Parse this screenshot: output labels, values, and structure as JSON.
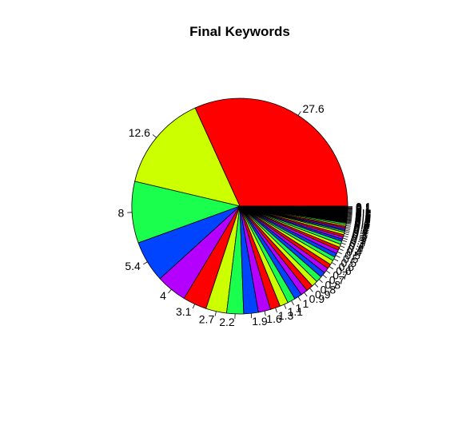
{
  "chart_data": {
    "type": "pie",
    "title": "Final Keywords",
    "palette": [
      "#FF0000",
      "#CCFF00",
      "#1AFF4D",
      "#0044FF",
      "#B300FF"
    ],
    "values": [
      27.6,
      12.6,
      8,
      5.4,
      4,
      3.1,
      2.7,
      2.2,
      1.9,
      1.6,
      1.3,
      1.1,
      1,
      1,
      0.9,
      0.9,
      0.8,
      0.8,
      0.7,
      0.7,
      0.6,
      0.6,
      0.5,
      0.5,
      0.5,
      0.4,
      0.4,
      0.4,
      0.3,
      0.3,
      0.3,
      0.3,
      0.2,
      0.2,
      0.2,
      0.2,
      0.2,
      0.2,
      0.1,
      0.1,
      0.1,
      0.1,
      0.1,
      0.1,
      0.1,
      0.1,
      0.1,
      0.1,
      0.1,
      0.1,
      0.1,
      0.1,
      0.1,
      0.1,
      0.1,
      0.1,
      0.1,
      0.1,
      0.1,
      0.1
    ],
    "labels": [
      "27.6",
      "12.6",
      "8",
      "5.4",
      "4",
      "3.1",
      "2.7",
      "2.2",
      "1.9",
      "1.6",
      "1.3",
      "1.1",
      "1",
      "1",
      "0.9",
      "0.9",
      "0.8",
      "0.8",
      "0.7",
      "0.7",
      "0.6",
      "0.6",
      "0.5",
      "0.5",
      "0.5",
      "0.4",
      "0.4",
      "0.4",
      "0.3",
      "0.3",
      "0.3",
      "0.3",
      "0.2",
      "0.2",
      "0.2",
      "0.2",
      "0.2",
      "0.2",
      "0.1",
      "0.1",
      "0.1",
      "0.1",
      "0.1",
      "0.1",
      "0.1",
      "0.1",
      "0.1",
      "0.1",
      "0.1",
      "0.1",
      "0.1",
      "0.1",
      "0.1",
      "0.1",
      "0.1",
      "0.1",
      "0.1",
      "0.1",
      "0.1",
      "0.1"
    ],
    "tail_fill": "#000000",
    "start": "3 o'clock",
    "direction": "counter-clockwise",
    "legend": "none"
  }
}
